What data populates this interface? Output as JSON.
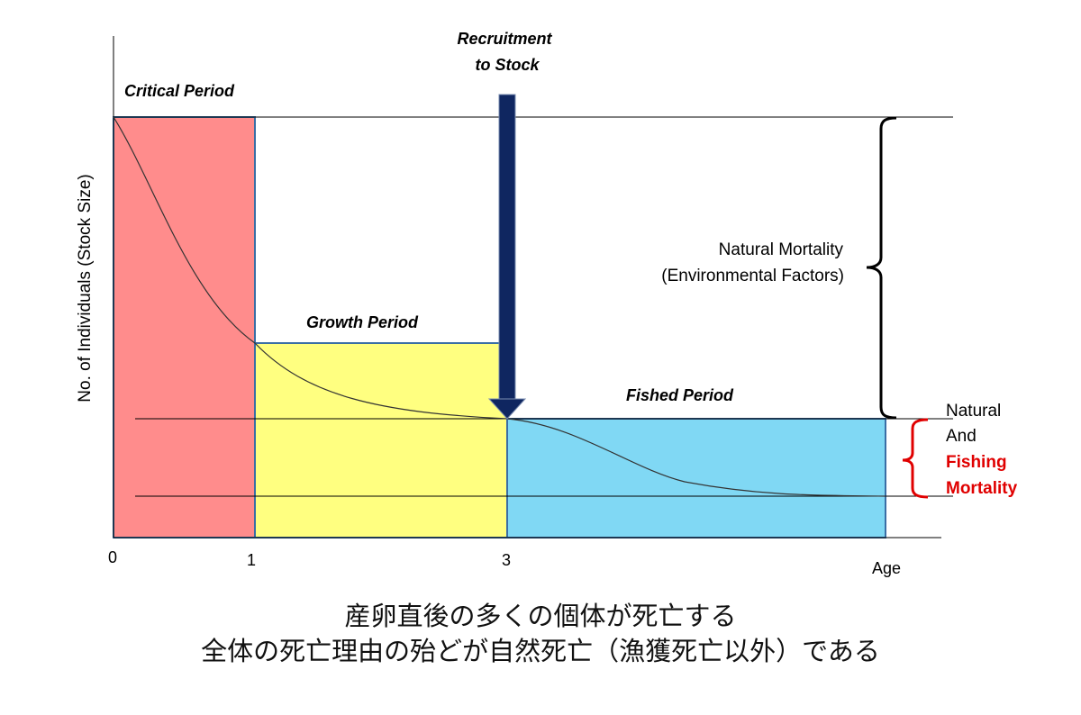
{
  "diagram": {
    "y_axis_label": "No. of Individuals (Stock Size)",
    "x_axis_label": "Age",
    "x_ticks": [
      "0",
      "1",
      "3"
    ],
    "periods": [
      {
        "label": "Critical Period",
        "color": "#ff8c8c"
      },
      {
        "label": "Growth Period",
        "color": "#ffff80"
      },
      {
        "label": "Fished Period",
        "color": "#80d8f4"
      }
    ],
    "recruitment_label_line1": "Recruitment",
    "recruitment_label_line2": "to Stock",
    "arrow_color": "#0f2660",
    "natural_mortality_line1": "Natural Mortality",
    "natural_mortality_line2": "(Environmental Factors)",
    "combined_mortality_line1": "Natural",
    "combined_mortality_line2": "And",
    "combined_mortality_line3": "Fishing",
    "combined_mortality_line4": "Mortality",
    "fishing_color": "#e00000"
  },
  "caption": {
    "line1": "産卵直後の多くの個体が死亡する",
    "line2": "全体の死亡理由の殆どが自然死亡（漁獲死亡以外）である"
  }
}
